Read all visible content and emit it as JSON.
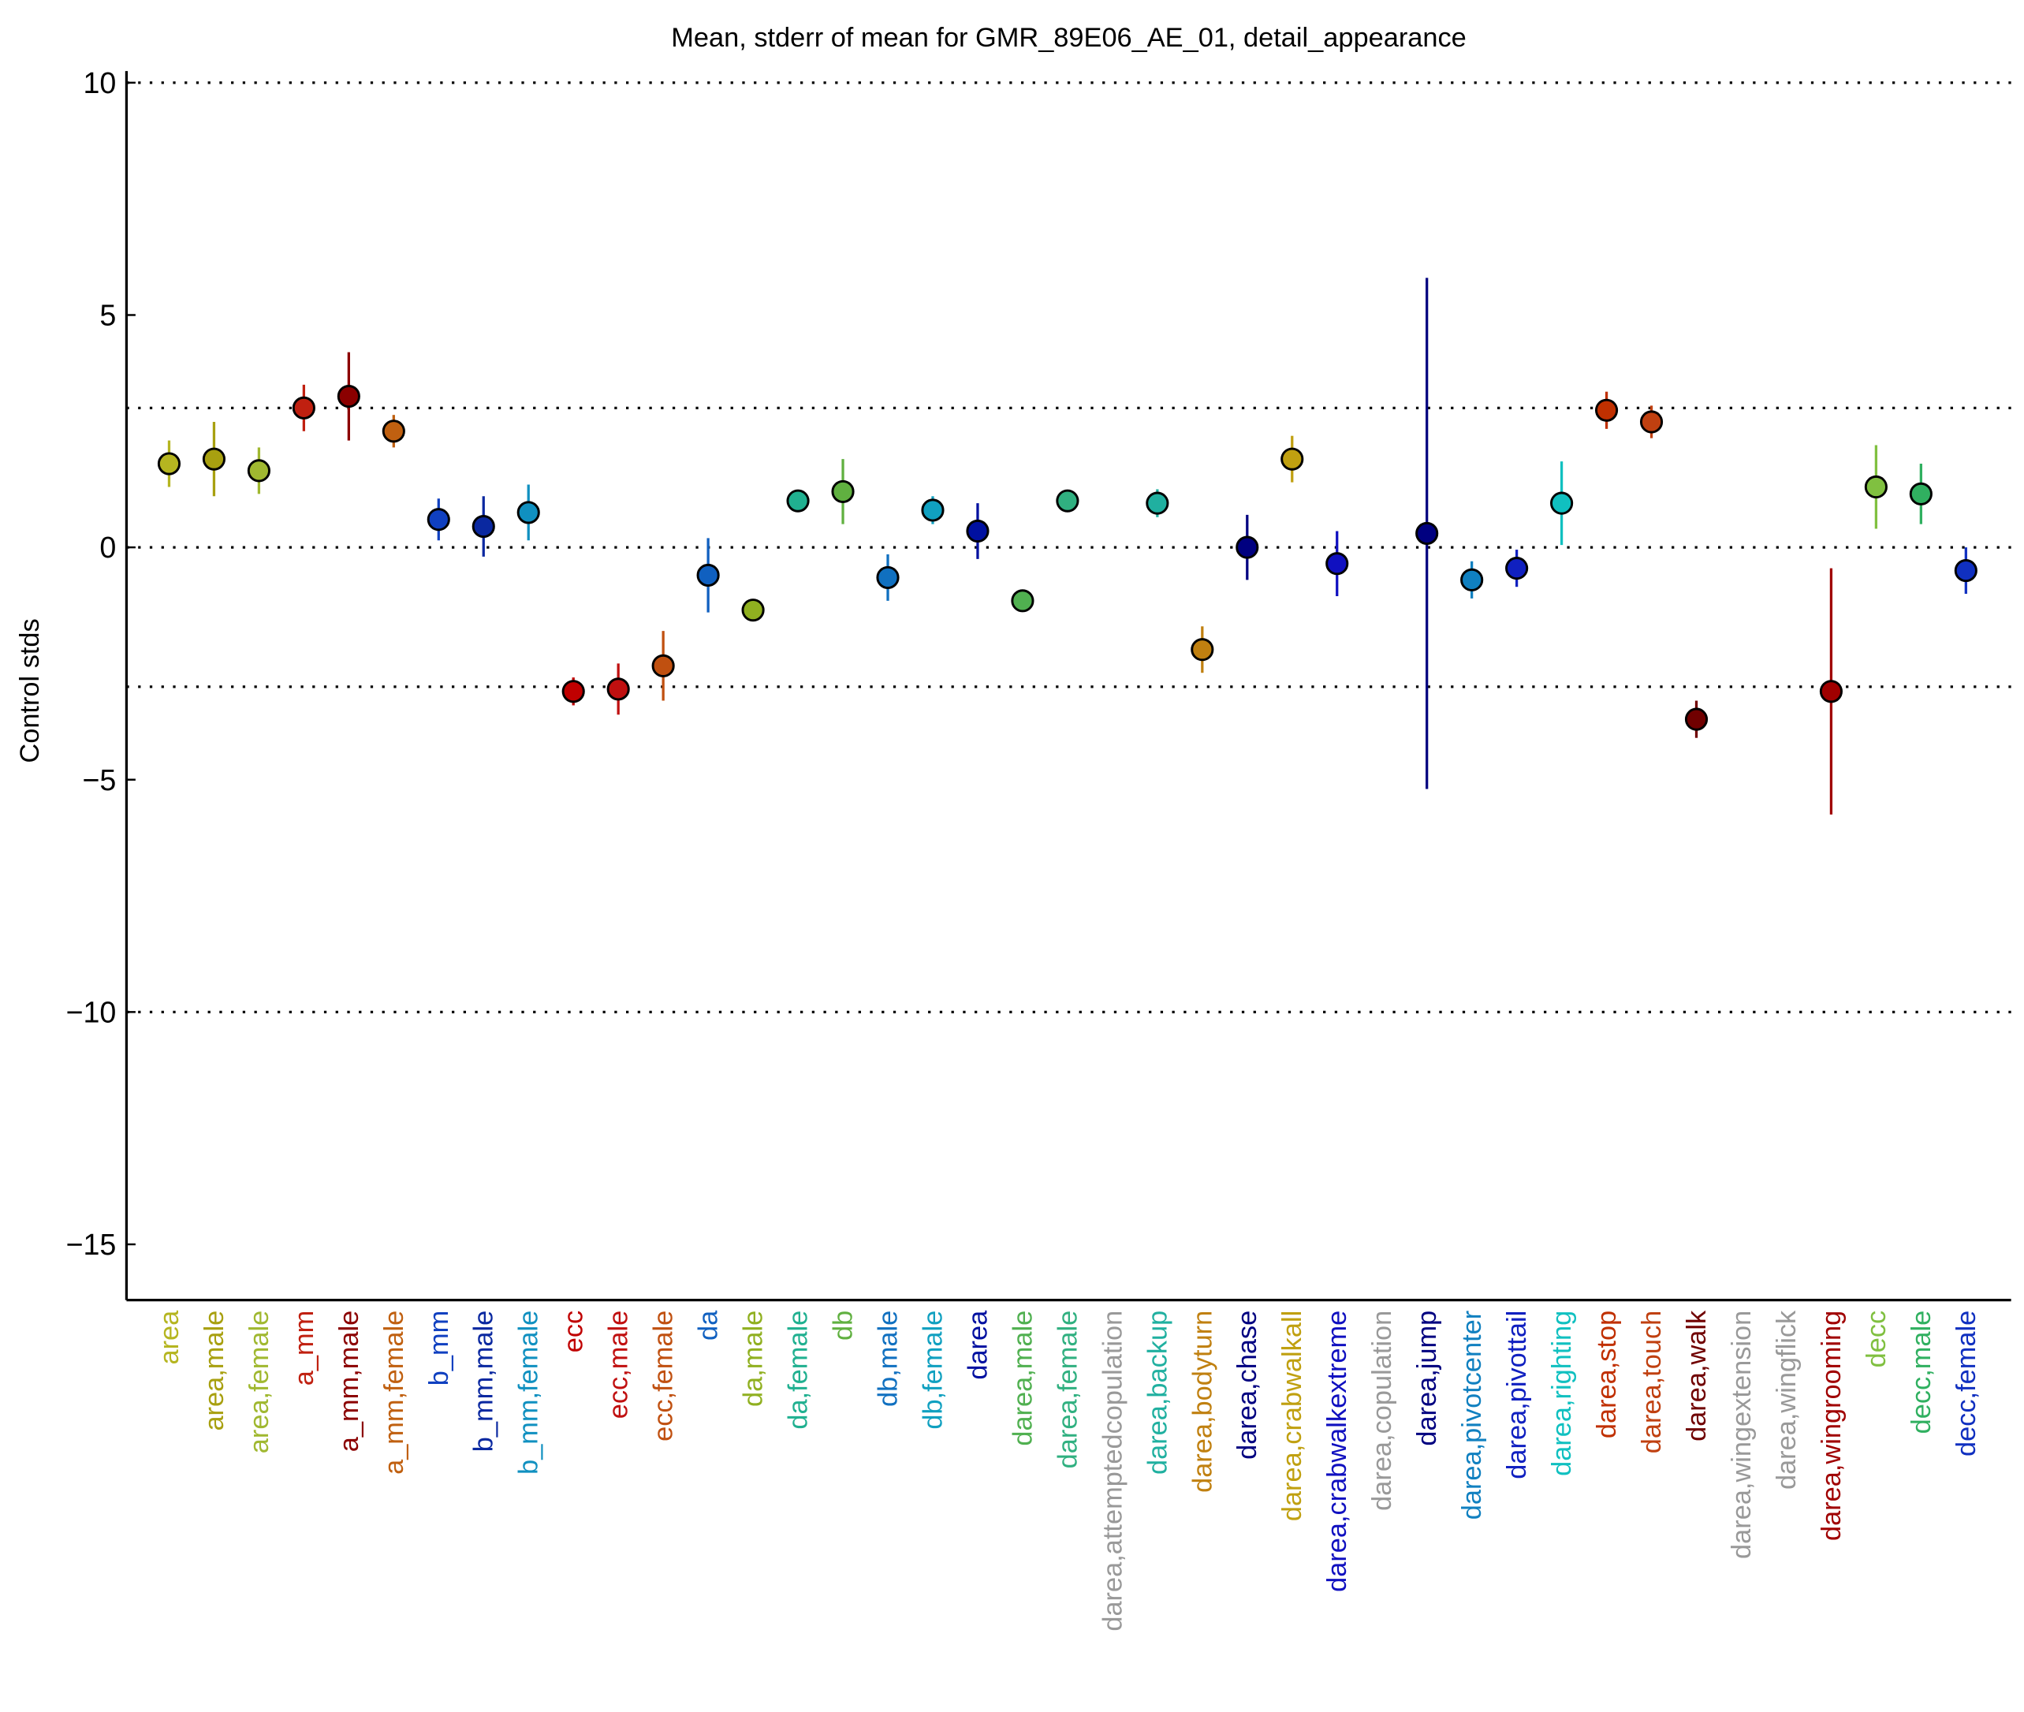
{
  "chart_data": {
    "type": "errorbar",
    "title": "Mean, stderr of mean for GMR_89E06_AE_01, detail_appearance",
    "y_label": "Control stds",
    "categories": [
      "area",
      "area,male",
      "area,female",
      "a_mm",
      "a_mm,male",
      "a_mm,female",
      "b_mm",
      "b_mm,male",
      "b_mm,female",
      "ecc",
      "ecc,male",
      "ecc,female",
      "da",
      "da,male",
      "da,female",
      "db",
      "db,male",
      "db,female",
      "darea",
      "darea,male",
      "darea,female",
      "darea,attemptedcopulation",
      "darea,backup",
      "darea,bodyturn",
      "darea,chase",
      "darea,crabwalkall",
      "darea,crabwalkextreme",
      "darea,copulation",
      "darea,jump",
      "darea,pivotcenter",
      "darea,pivottail",
      "darea,righting",
      "darea,stop",
      "darea,touch",
      "darea,walk",
      "darea,wingextension",
      "darea,wingflick",
      "darea,wingrooming",
      "decc",
      "decc,male",
      "decc,female"
    ],
    "values": [
      1.8,
      1.9,
      1.65,
      3.0,
      3.25,
      2.5,
      0.6,
      0.45,
      0.75,
      -3.1,
      -3.05,
      -2.55,
      -0.6,
      -1.35,
      1.0,
      1.2,
      -0.65,
      0.8,
      0.35,
      -1.15,
      1.0,
      null,
      0.95,
      -2.2,
      0.0,
      1.9,
      -0.35,
      null,
      0.3,
      -0.7,
      -0.45,
      0.95,
      2.95,
      2.7,
      -3.7,
      null,
      null,
      -3.1,
      1.3,
      1.15,
      -0.5
    ],
    "errors": [
      0.5,
      0.8,
      0.5,
      0.5,
      0.95,
      0.35,
      0.45,
      0.65,
      0.6,
      0.3,
      0.55,
      0.75,
      0.8,
      0.15,
      0.2,
      0.7,
      0.5,
      0.3,
      0.6,
      0.2,
      0.2,
      null,
      0.3,
      0.5,
      0.7,
      0.5,
      0.7,
      null,
      5.5,
      0.4,
      0.4,
      0.9,
      0.4,
      0.35,
      0.4,
      null,
      null,
      2.65,
      0.9,
      0.65,
      0.5
    ],
    "colors": [
      "#b5b520",
      "#a8a010",
      "#a0b830",
      "#c02010",
      "#8b0000",
      "#c06010",
      "#1040c0",
      "#0a28a0",
      "#1090c0",
      "#c00000",
      "#c01010",
      "#c05010",
      "#1060c0",
      "#90b020",
      "#20b090",
      "#60b040",
      "#1070c0",
      "#10a0c0",
      "#0010a0",
      "#50b050",
      "#30b080",
      "#999999",
      "#20b0a0",
      "#c08010",
      "#000080",
      "#c0a010",
      "#1010c0",
      "#999999",
      "#000080",
      "#1080c0",
      "#1020c0",
      "#10c0c0",
      "#c03000",
      "#c04010",
      "#700000",
      "#999999",
      "#999999",
      "#a00000",
      "#80c040",
      "#30b060",
      "#1030c0"
    ],
    "ylim": [
      -16.2,
      10.25
    ],
    "yticks": [
      10,
      5,
      0,
      {
        "value": -5,
        "label": "−5"
      },
      {
        "value": -10,
        "label": "−10"
      },
      {
        "value": -15,
        "label": "−15"
      }
    ],
    "reference_lines": [
      10,
      3,
      0,
      -3,
      -10
    ]
  }
}
